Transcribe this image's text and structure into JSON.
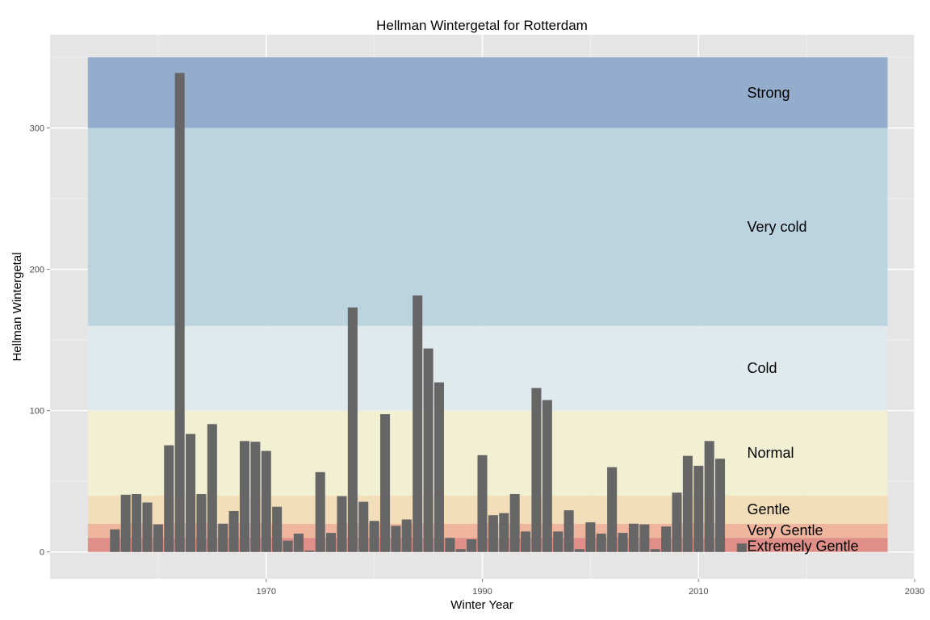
{
  "chart_data": {
    "type": "bar",
    "title": "Hellman Wintergetal for Rotterdam",
    "xlabel": "Winter Year",
    "ylabel": "Hellman Wintergetal",
    "xlim": [
      1950,
      2030
    ],
    "ylim": [
      -19,
      366
    ],
    "x_ticks": [
      1970,
      1990,
      2010,
      2030
    ],
    "y_ticks": [
      0,
      100,
      200,
      300
    ],
    "grid": true,
    "bands": [
      {
        "label": "Extremely Gentle",
        "from": 0,
        "to": 10,
        "color": "#e08f88"
      },
      {
        "label": "Very Gentle",
        "from": 10,
        "to": 20,
        "color": "#f0b59d"
      },
      {
        "label": "Gentle",
        "from": 20,
        "to": 40,
        "color": "#f2dfb9"
      },
      {
        "label": "Normal",
        "from": 40,
        "to": 100,
        "color": "#f2f0d2"
      },
      {
        "label": "Cold",
        "from": 100,
        "to": 160,
        "color": "#e0e9ec"
      },
      {
        "label": "Very cold",
        "from": 160,
        "to": 300,
        "color": "#bcd3e0"
      },
      {
        "label": "Strong",
        "from": 300,
        "to": 350,
        "color": "#94adcc"
      }
    ],
    "band_x_range": [
      1953.5,
      2027.5
    ],
    "bar_color": "#666666",
    "series": [
      {
        "x": [
          1956,
          1957,
          1958,
          1959,
          1960,
          1961,
          1962,
          1963,
          1964,
          1965,
          1966,
          1967,
          1968,
          1969,
          1970,
          1971,
          1972,
          1973,
          1974,
          1975,
          1976,
          1977,
          1978,
          1979,
          1980,
          1981,
          1982,
          1983,
          1984,
          1985,
          1986,
          1987,
          1988,
          1989,
          1990,
          1991,
          1992,
          1993,
          1994,
          1995,
          1996,
          1997,
          1998,
          1999,
          2000,
          2001,
          2002,
          2003,
          2004,
          2005,
          2006,
          2007,
          2008,
          2009,
          2010,
          2011,
          2012,
          2014
        ],
        "values": [
          16,
          40.5,
          41,
          35,
          19.5,
          75.5,
          339,
          83.5,
          41,
          90.5,
          20,
          29,
          78.5,
          78,
          71.5,
          32,
          8,
          13,
          1,
          56.5,
          13.5,
          39.5,
          173,
          35.5,
          22,
          97.5,
          18.5,
          23,
          181.5,
          144,
          120,
          10,
          2,
          9,
          68.5,
          26,
          27.5,
          41,
          14.5,
          116,
          107.5,
          14.5,
          29.5,
          2,
          21,
          13,
          60,
          13.5,
          20,
          19.5,
          2,
          18,
          42,
          68,
          61,
          78.5,
          66,
          6
        ]
      }
    ]
  }
}
